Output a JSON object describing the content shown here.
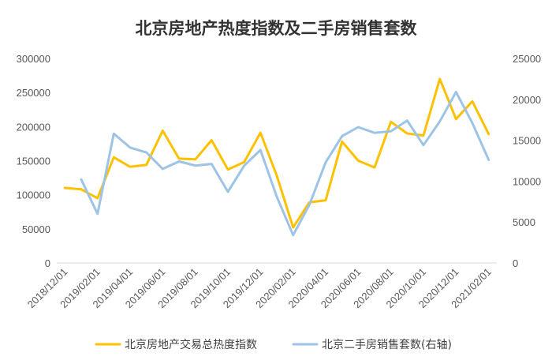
{
  "chart_data": {
    "type": "line",
    "title": "北京房地产热度指数及二手房销售套数",
    "x": [
      "2018/12/01",
      "2019/01/01",
      "2019/02/01",
      "2019/03/01",
      "2019/04/01",
      "2019/05/01",
      "2019/06/01",
      "2019/07/01",
      "2019/08/01",
      "2019/09/01",
      "2019/10/01",
      "2019/11/01",
      "2019/12/01",
      "2020/01/01",
      "2020/02/01",
      "2020/03/01",
      "2020/04/01",
      "2020/05/01",
      "2020/06/01",
      "2020/07/01",
      "2020/08/01",
      "2020/09/01",
      "2020/10/01",
      "2020/11/01",
      "2020/12/01",
      "2021/01/01",
      "2021/02/01"
    ],
    "x_tick_labels": [
      "2018/12/01",
      "2019/02/01",
      "2019/04/01",
      "2019/06/01",
      "2019/08/01",
      "2019/10/01",
      "2019/12/01",
      "2020/02/01",
      "2020/04/01",
      "2020/06/01",
      "2020/08/01",
      "2020/10/01",
      "2020/12/01",
      "2021/02/01"
    ],
    "left_axis": {
      "ylim": [
        0,
        300000
      ],
      "ticks": [
        "0",
        "50000",
        "100000",
        "150000",
        "200000",
        "250000",
        "300000"
      ]
    },
    "right_axis": {
      "ylim": [
        0,
        25000
      ],
      "ticks": [
        "0",
        "5000",
        "10000",
        "15000",
        "20000",
        "25000"
      ]
    },
    "grid": false,
    "legend_position": "bottom",
    "series": [
      {
        "name": "北京房地产交易总热度指数",
        "axis": "left",
        "color": "#FFC000",
        "values": [
          110000,
          108000,
          95000,
          155000,
          141000,
          144000,
          194000,
          153000,
          152000,
          180000,
          137000,
          148000,
          191000,
          128000,
          52000,
          89000,
          92000,
          178000,
          150000,
          140000,
          207000,
          190000,
          187000,
          270000,
          211000,
          237000,
          189000
        ]
      },
      {
        "name": "北京二手房销售套数(右轴)",
        "axis": "right",
        "color": "#9DC3E6",
        "values": [
          null,
          10200,
          6000,
          15800,
          14100,
          13500,
          11500,
          12400,
          11900,
          12100,
          8700,
          11900,
          13800,
          8100,
          3400,
          7100,
          12300,
          15500,
          16600,
          15900,
          16100,
          17400,
          14400,
          17300,
          20900,
          17100,
          12600
        ]
      }
    ]
  }
}
